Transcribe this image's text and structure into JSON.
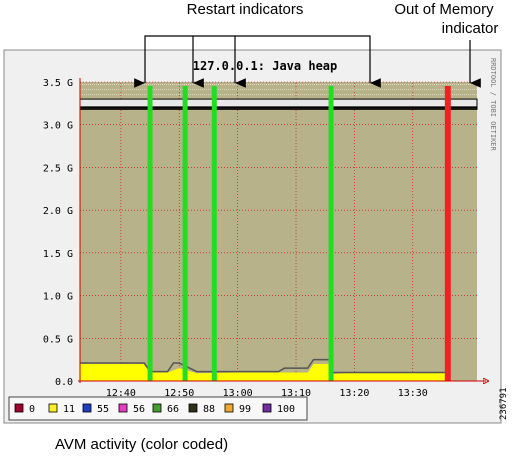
{
  "annotations": {
    "restart": "Restart indicators",
    "oom_line1": "Out of Memory",
    "oom_line2": "indicator",
    "avm": "AVM activity (color coded)",
    "figure_id": "236791"
  },
  "chart_data": {
    "type": "area",
    "title": "127.0.0.1: Java heap",
    "side_label": "RRDTOOL / TOBI OETIKER",
    "x_ticks": [
      "12:40",
      "12:50",
      "13:00",
      "13:10",
      "13:20",
      "13:30"
    ],
    "y_ticks": [
      "0.0",
      "0.5 G",
      "1.0 G",
      "1.5 G",
      "2.0 G",
      "2.5 G",
      "3.0 G",
      "3.5 G"
    ],
    "ylim": [
      0,
      3.5
    ],
    "xlim": [
      "12:33",
      "13:41"
    ],
    "heap_max_gb": 3.2,
    "heap_max_band_gb": [
      3.18,
      3.3
    ],
    "restart_times": [
      "12:45",
      "12:51",
      "12:56",
      "13:16"
    ],
    "oom_time": "13:36",
    "heap_used": {
      "x": [
        "12:33",
        "12:44",
        "12:45",
        "12:48",
        "12:50",
        "12:53",
        "13:00",
        "13:08",
        "13:12",
        "13:13",
        "13:16",
        "13:16",
        "13:20",
        "13:30",
        "13:36"
      ],
      "y": [
        0.2,
        0.2,
        0.1,
        0.1,
        0.15,
        0.09,
        0.1,
        0.1,
        0.1,
        0.2,
        0.2,
        0.08,
        0.1,
        0.1,
        0.1
      ]
    },
    "heap_committed": {
      "x": [
        "12:33",
        "12:44",
        "12:45",
        "12:48",
        "12:49",
        "12:50",
        "12:53",
        "13:00",
        "13:07",
        "13:08",
        "13:12",
        "13:13",
        "13:16",
        "13:16",
        "13:20",
        "13:30",
        "13:36"
      ],
      "y": [
        0.21,
        0.21,
        0.11,
        0.11,
        0.21,
        0.21,
        0.11,
        0.11,
        0.11,
        0.15,
        0.15,
        0.25,
        0.25,
        0.1,
        0.1,
        0.1,
        0.1
      ]
    },
    "legend": [
      {
        "label": "0",
        "color": "#a00030"
      },
      {
        "label": "11",
        "color": "#ffee22"
      },
      {
        "label": "55",
        "color": "#2040c0"
      },
      {
        "label": "56",
        "color": "#e040c0"
      },
      {
        "label": "66",
        "color": "#40a030"
      },
      {
        "label": "88",
        "color": "#303018"
      },
      {
        "label": "99",
        "color": "#f0a830"
      },
      {
        "label": "100",
        "color": "#7030a0"
      }
    ],
    "colors": {
      "background_area": "#b7b28a",
      "heap_used_fill": "#ffff00",
      "restart": "#22dd22",
      "oom": "#ee2222",
      "grid": "#cc0000",
      "plot_frame": "#f0f0f0"
    }
  }
}
